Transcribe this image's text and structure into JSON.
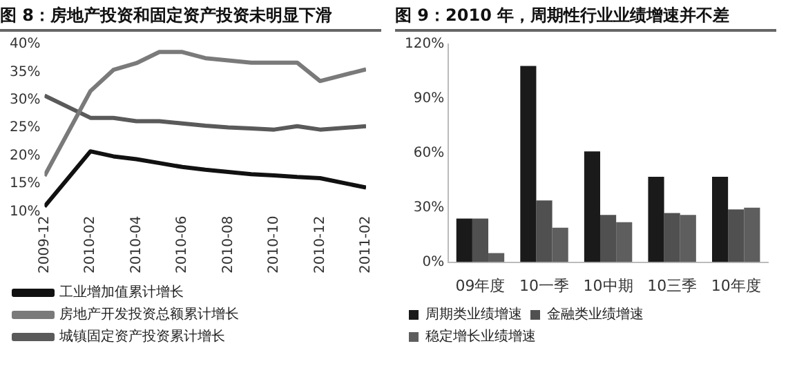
{
  "chart_data": [
    {
      "type": "line",
      "title": "图 8：房地产投资和固定资产投资未明显下滑",
      "x": [
        "2009-12",
        "2010-02",
        "2010-03",
        "2010-04",
        "2010-05",
        "2010-06",
        "2010-07",
        "2010-08",
        "2010-09",
        "2010-10",
        "2010-11",
        "2010-12",
        "2011-02"
      ],
      "xlim": [
        "2009-12",
        "2011-02"
      ],
      "xticks": [
        "2009-12",
        "2010-02",
        "2010-04",
        "2010-06",
        "2010-08",
        "2010-10",
        "2010-12",
        "2011-02"
      ],
      "ylim": [
        10,
        40
      ],
      "yticks": [
        {
          "value": 10,
          "label": "10%"
        },
        {
          "value": 15,
          "label": "15%"
        },
        {
          "value": 20,
          "label": "20%"
        },
        {
          "value": 25,
          "label": "25%"
        },
        {
          "value": 30,
          "label": "30%"
        },
        {
          "value": 35,
          "label": "35%"
        },
        {
          "value": 40,
          "label": "40%"
        }
      ],
      "legend": "bottom",
      "marker": "none",
      "series": [
        {
          "name": "工业增加值累计增长",
          "color": "#111111",
          "values": [
            10.9,
            20.8,
            19.9,
            19.4,
            18.7,
            18.0,
            17.5,
            17.1,
            16.7,
            16.5,
            16.2,
            16.0,
            14.3
          ]
        },
        {
          "name": "房地产开发投资总额累计增长",
          "color": "#7a7a7a",
          "values": [
            16.4,
            31.6,
            35.4,
            36.6,
            38.6,
            38.6,
            37.5,
            37.1,
            36.7,
            36.7,
            36.7,
            33.4,
            35.5
          ]
        },
        {
          "name": "城镇固定资产投资累计增长",
          "color": "#5a5a5a",
          "values": [
            30.8,
            26.8,
            26.8,
            26.2,
            26.2,
            25.8,
            25.4,
            25.1,
            24.9,
            24.7,
            25.3,
            24.7,
            25.3
          ]
        }
      ]
    },
    {
      "type": "bar",
      "title": "图 9：2010 年，周期性行业业绩增速并不差",
      "categories": [
        "09年度",
        "10一季",
        "10中期",
        "10三季",
        "10年度"
      ],
      "ylim": [
        0,
        120
      ],
      "yticks": [
        {
          "value": 0,
          "label": "0%"
        },
        {
          "value": 30,
          "label": "30%"
        },
        {
          "value": 60,
          "label": "60%"
        },
        {
          "value": 90,
          "label": "90%"
        },
        {
          "value": 120,
          "label": "120%"
        }
      ],
      "legend": "bottom",
      "series": [
        {
          "name": "周期类业绩增速",
          "color": "#1a1a1a",
          "values": [
            24,
            108,
            61,
            47,
            47
          ]
        },
        {
          "name": "金融类业绩增速",
          "color": "#505050",
          "values": [
            24,
            34,
            26,
            27,
            29
          ]
        },
        {
          "name": "稳定增长业绩增速",
          "color": "#5e5e5e",
          "values": [
            5,
            19,
            22,
            26,
            30
          ]
        }
      ]
    }
  ]
}
